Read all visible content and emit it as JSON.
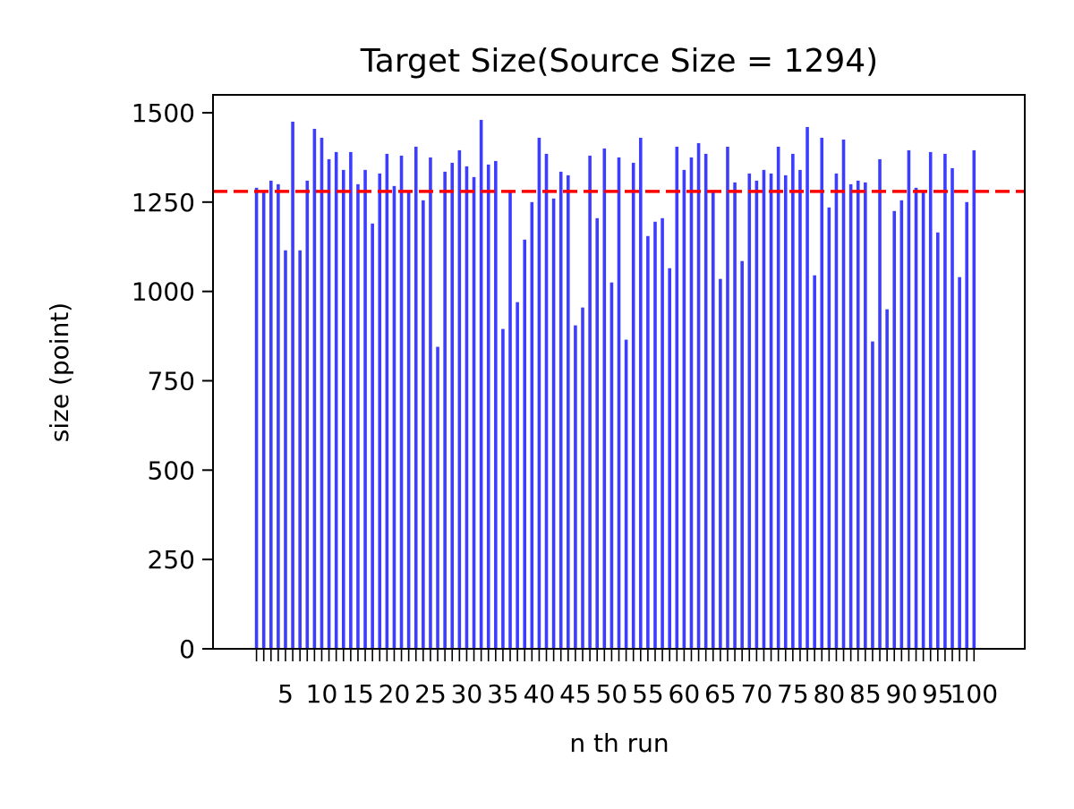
{
  "chart_data": {
    "type": "bar",
    "title": "Target Size(Source Size = 1294)",
    "xlabel": "n th run",
    "ylabel": "size (point)",
    "xlim": [
      -5,
      107
    ],
    "ylim": [
      0,
      1550
    ],
    "yticks": [
      0,
      250,
      500,
      750,
      1000,
      1250,
      1500
    ],
    "xtick_labels": [
      "5",
      "10",
      "15",
      "20",
      "25",
      "30",
      "35",
      "40",
      "45",
      "50",
      "55",
      "60",
      "65",
      "70",
      "75",
      "80",
      "85",
      "90",
      "95",
      "100"
    ],
    "bar_color": "#3333ff",
    "reference_line": {
      "value": 1280,
      "color": "#ff0000",
      "style": "dashed"
    },
    "grid": false,
    "legend": "none",
    "x": [
      1,
      2,
      3,
      4,
      5,
      6,
      7,
      8,
      9,
      10,
      11,
      12,
      13,
      14,
      15,
      16,
      17,
      18,
      19,
      20,
      21,
      22,
      23,
      24,
      25,
      26,
      27,
      28,
      29,
      30,
      31,
      32,
      33,
      34,
      35,
      36,
      37,
      38,
      39,
      40,
      41,
      42,
      43,
      44,
      45,
      46,
      47,
      48,
      49,
      50,
      51,
      52,
      53,
      54,
      55,
      56,
      57,
      58,
      59,
      60,
      61,
      62,
      63,
      64,
      65,
      66,
      67,
      68,
      69,
      70,
      71,
      72,
      73,
      74,
      75,
      76,
      77,
      78,
      79,
      80,
      81,
      82,
      83,
      84,
      85,
      86,
      87,
      88,
      89,
      90,
      91,
      92,
      93,
      94,
      95,
      96,
      97,
      98,
      99,
      100
    ],
    "values": [
      1290,
      1280,
      1310,
      1300,
      1115,
      1475,
      1115,
      1310,
      1455,
      1430,
      1370,
      1390,
      1340,
      1390,
      1300,
      1340,
      1190,
      1330,
      1385,
      1295,
      1380,
      1280,
      1405,
      1255,
      1375,
      845,
      1335,
      1360,
      1395,
      1350,
      1320,
      1480,
      1355,
      1365,
      895,
      1280,
      970,
      1145,
      1250,
      1430,
      1385,
      1260,
      1335,
      1325,
      905,
      955,
      1380,
      1205,
      1400,
      1025,
      1375,
      865,
      1360,
      1430,
      1155,
      1195,
      1205,
      1065,
      1405,
      1340,
      1375,
      1415,
      1385,
      1280,
      1035,
      1405,
      1305,
      1085,
      1330,
      1310,
      1340,
      1330,
      1405,
      1325,
      1385,
      1340,
      1460,
      1045,
      1430,
      1235,
      1330,
      1425,
      1300,
      1310,
      1305,
      860,
      1370,
      950,
      1225,
      1255,
      1395,
      1290,
      1280,
      1390,
      1165,
      1385,
      1345,
      1040,
      1250,
      1395
    ]
  }
}
